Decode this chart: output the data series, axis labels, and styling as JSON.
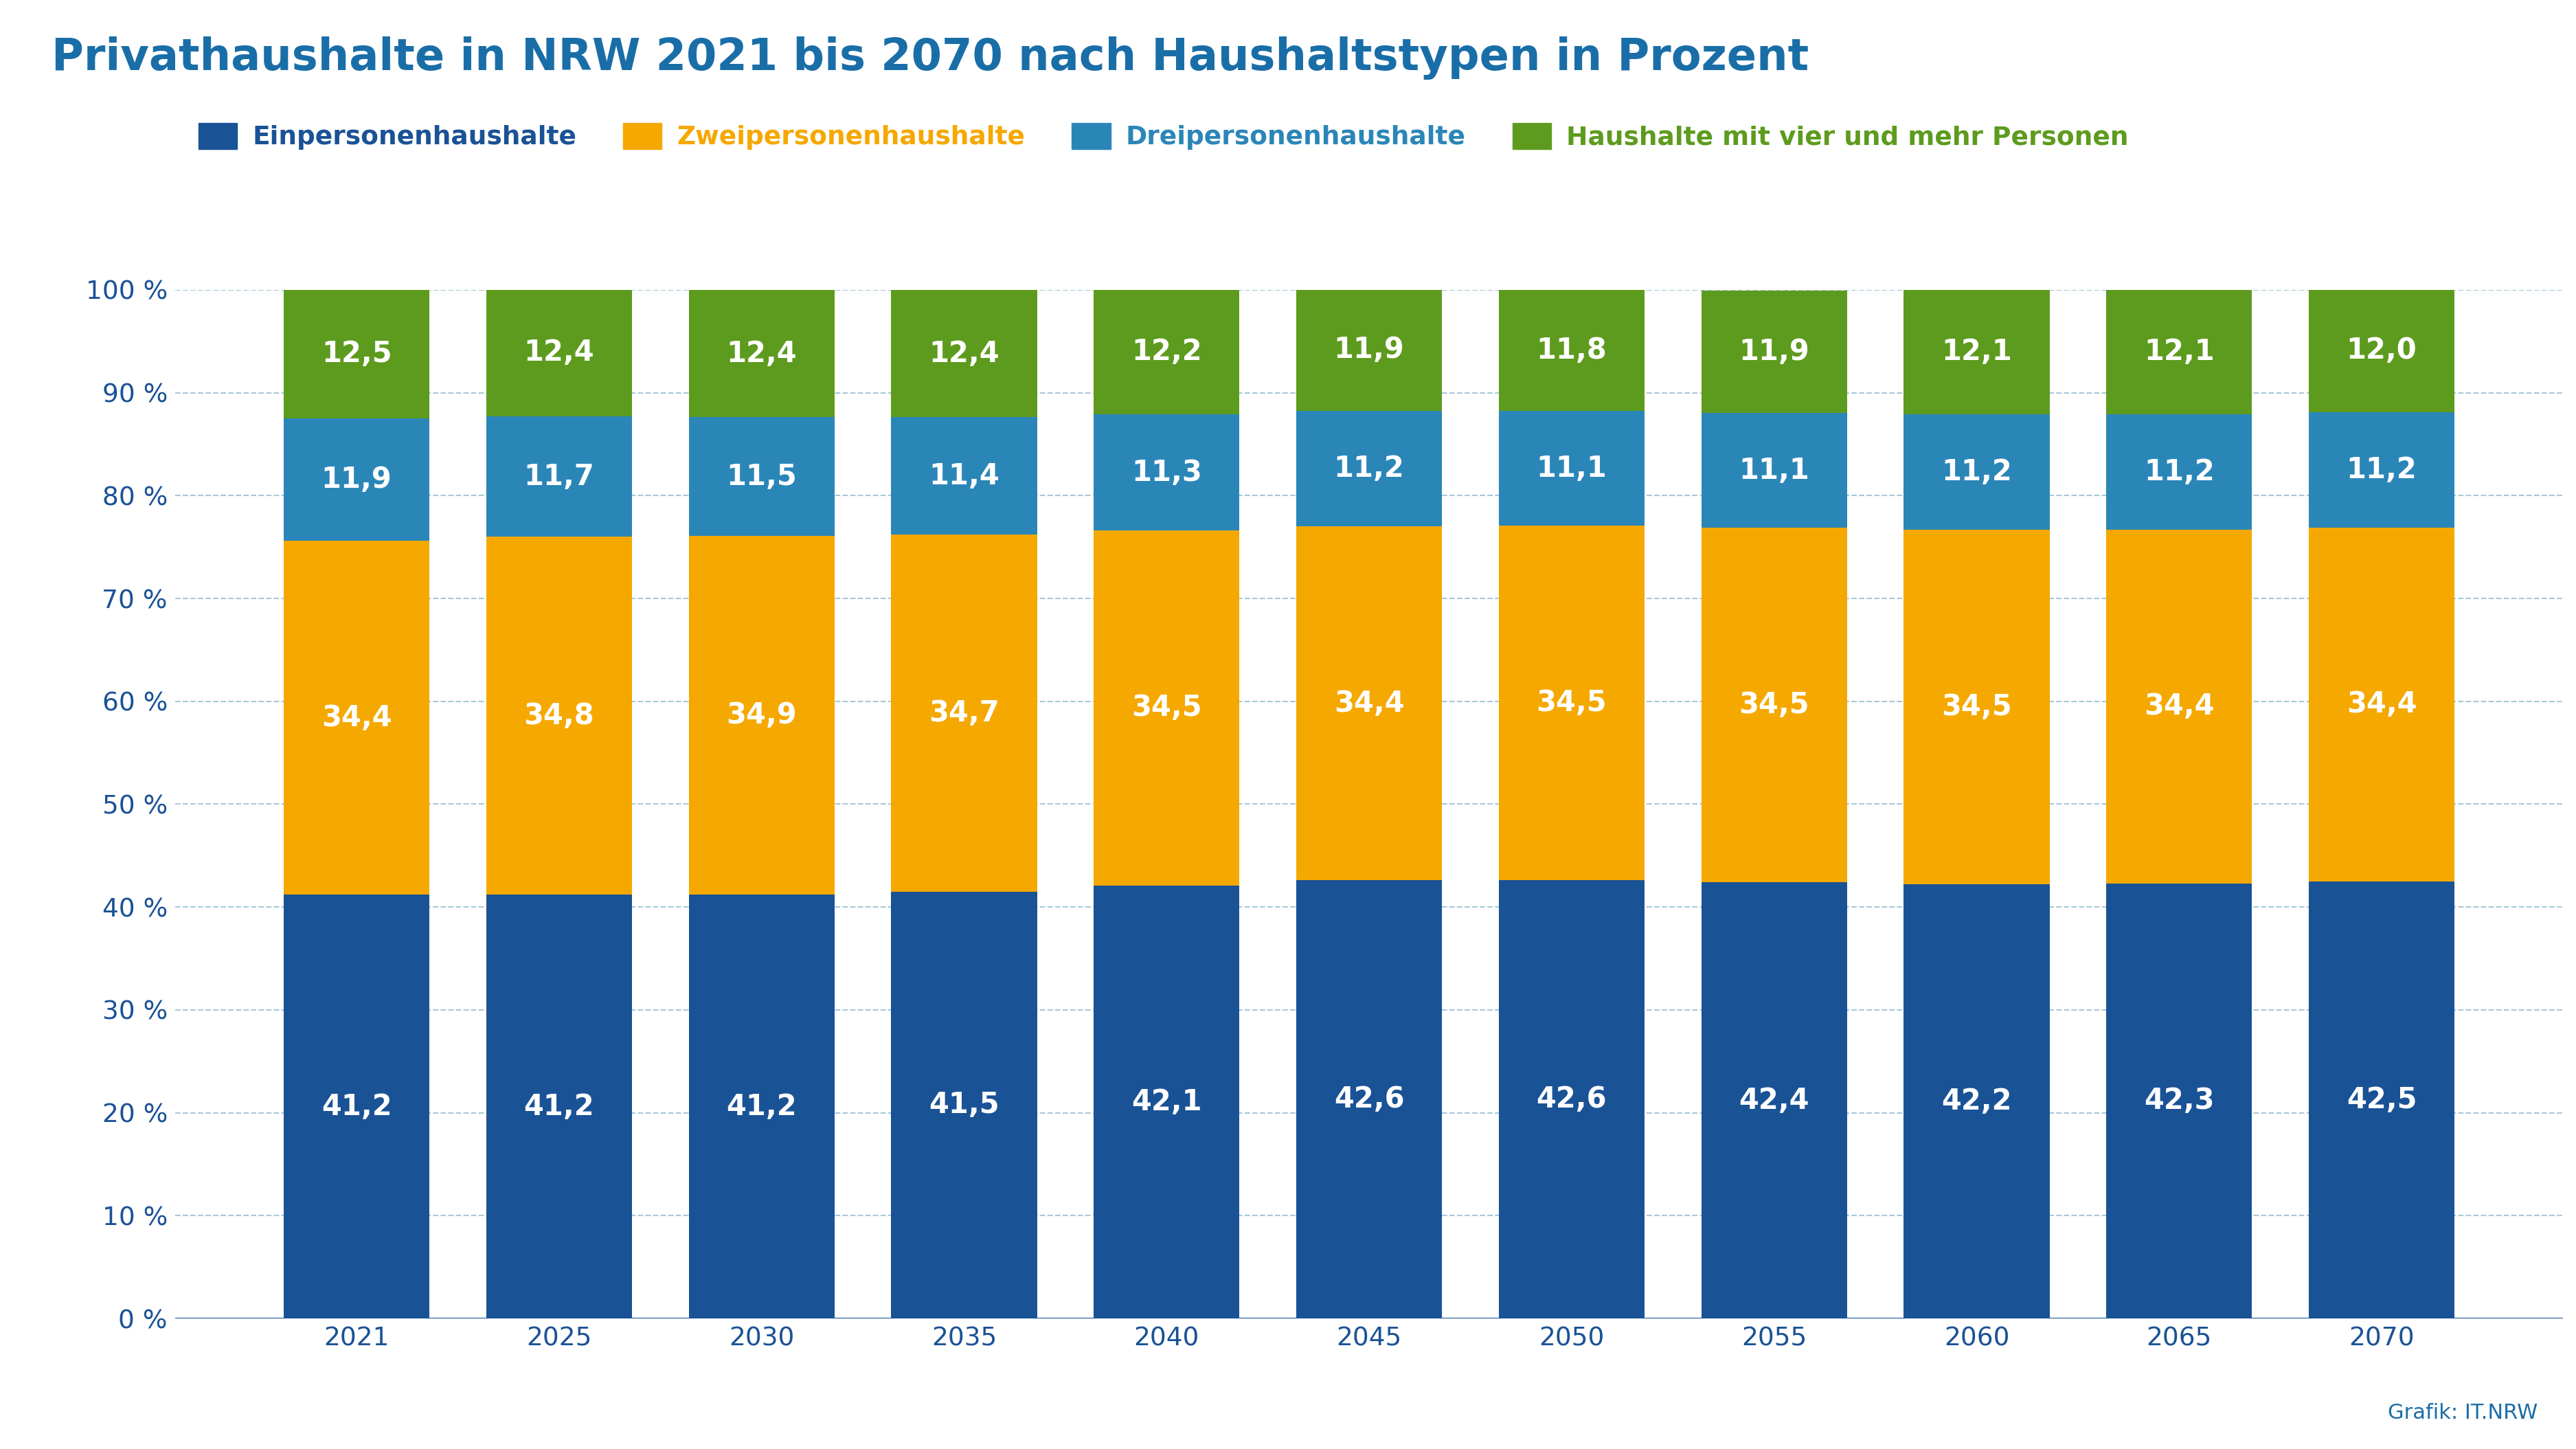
{
  "title": "Privathaushalte in NRW 2021 bis 2070 nach Haushaltstypen in Prozent",
  "title_color": "#1a6ea8",
  "background_color": "#ffffff",
  "years": [
    "2021",
    "2025",
    "2030",
    "2035",
    "2040",
    "2045",
    "2050",
    "2055",
    "2060",
    "2065",
    "2070"
  ],
  "series": {
    "Einpersonenhaushalte": {
      "values": [
        41.2,
        41.2,
        41.2,
        41.5,
        42.1,
        42.6,
        42.6,
        42.4,
        42.2,
        42.3,
        42.5
      ],
      "color": "#1a5296"
    },
    "Zweipersonenhaushalte": {
      "values": [
        34.4,
        34.8,
        34.9,
        34.7,
        34.5,
        34.4,
        34.5,
        34.5,
        34.5,
        34.4,
        34.4
      ],
      "color": "#f5a800"
    },
    "Dreipersonenhaushalte": {
      "values": [
        11.9,
        11.7,
        11.5,
        11.4,
        11.3,
        11.2,
        11.1,
        11.1,
        11.2,
        11.2,
        11.2
      ],
      "color": "#2b86b8"
    },
    "Haushalte mit vier und mehr Personen": {
      "values": [
        12.5,
        12.4,
        12.4,
        12.4,
        12.2,
        11.9,
        11.8,
        11.9,
        12.1,
        12.1,
        12.0
      ],
      "color": "#5d9b1e"
    }
  },
  "legend_text_colors": {
    "Einpersonenhaushalte": "#1a5296",
    "Zweipersonenhaushalte": "#f5a800",
    "Dreipersonenhaushalte": "#2b86b8",
    "Haushalte mit vier und mehr Personen": "#5d9b1e"
  },
  "yticks": [
    0,
    10,
    20,
    30,
    40,
    50,
    60,
    70,
    80,
    90,
    100
  ],
  "ytick_labels": [
    "0 %",
    "10 %",
    "20 %",
    "30 %",
    "40 %",
    "50 %",
    "60 %",
    "70 %",
    "80 %",
    "90 %",
    "100 %"
  ],
  "grid_color": "#a8c8d8",
  "bar_label_color": "#ffffff",
  "bar_label_fontsize": 30,
  "title_fontsize": 46,
  "legend_fontsize": 27,
  "tick_fontsize": 27,
  "tick_color": "#1a5296",
  "source_text": "Grafik: IT.NRW",
  "source_color": "#1a6ea8",
  "source_fontsize": 22,
  "bar_width": 0.72
}
